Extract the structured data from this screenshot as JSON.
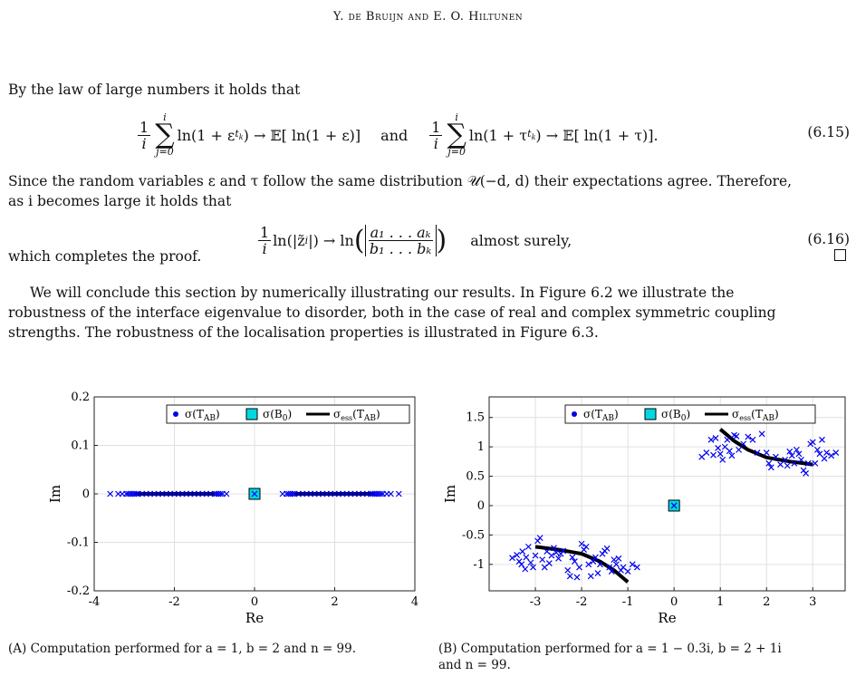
{
  "running_head": "Y. de Bruijn and E. O. Hiltunen",
  "para1": "By the law of large numbers it holds that",
  "eq615": {
    "number": "(6.15)",
    "frac_num": "1",
    "frac_den": "i",
    "sum_top": "i",
    "sum_bottom": "j=0",
    "term_left": "ln(1 + ε",
    "sub_left": "t",
    "subsub": "k",
    "arrow_left": ") → 𝔼[ ln(1 + ε)]",
    "and_word": "and",
    "term_right": "ln(1 + τ",
    "arrow_right": ") → 𝔼[ ln(1 + τ)]."
  },
  "para2_line1": "Since the random variables ε and τ follow the same distribution 𝒰(−d, d) their expectations agree. Therefore,",
  "para2_line2": "as i becomes large it holds that",
  "eq616": {
    "number": "(6.16)",
    "lhs": "ln(|z̃",
    "lhs_sub": "i",
    "lhs_end": "|) → ln",
    "num": "a₁ . . . aₖ",
    "den": "b₁ . . . bₖ",
    "text": "almost surely,"
  },
  "para3": "which completes the proof.",
  "para4_line1": "We will conclude this section by numerically illustrating our results. In Figure 6.2 we illustrate the",
  "para4_line2": "robustness of the interface eigenvalue to disorder, both in the case of real and complex symmetric coupling",
  "para4_line3": "strengths. The robustness of the localisation properties is illustrated in Figure 6.3.",
  "caption_a": "(A) Computation performed for a = 1,  b = 2 and n = 99.",
  "caption_b_line1": "(B) Computation performed for a = 1 − 0.3i,  b = 2 + 1i",
  "caption_b_line2": "and n = 99.",
  "legend": {
    "spectrum": "σ(T",
    "spectrum_sub": "AB",
    "defect": "σ(B",
    "defect_sub": "0",
    "essential": "σ",
    "essential_sub": "ess",
    "essential_arg": "(T",
    "close": ")"
  },
  "colors": {
    "spectrum": "#0000ee",
    "defect_fill": "#00d8e0",
    "essential": "#000000",
    "grid": "#e0e0e0"
  },
  "chart_data": [
    {
      "type": "scatter",
      "title": "",
      "xlabel": "Re",
      "ylabel": "Im",
      "xlim": [
        -4,
        4
      ],
      "ylim": [
        -0.2,
        0.2
      ],
      "x_ticks": [
        "-4",
        "-2",
        "0",
        "2",
        "4"
      ],
      "y_ticks": [
        "0.2",
        "0.1",
        "0",
        "-0.1",
        "-0.2"
      ],
      "x_tick_values": [
        -4,
        -2,
        0,
        2,
        4
      ],
      "y_tick_values": [
        0.2,
        0.1,
        0,
        -0.1,
        -0.2
      ],
      "grid": true,
      "legend_position": "top-right",
      "series": [
        {
          "name": "σ(T_AB)",
          "marker": "x",
          "points": [
            [
              -3.6,
              0
            ],
            [
              -3.4,
              0
            ],
            [
              -3.3,
              0
            ],
            [
              -3.2,
              0
            ],
            [
              -3.15,
              0
            ],
            [
              -3.1,
              0
            ],
            [
              -3.05,
              0
            ],
            [
              -3.0,
              0
            ],
            [
              -2.95,
              0
            ],
            [
              -2.9,
              0
            ],
            [
              -2.8,
              0
            ],
            [
              -2.7,
              0
            ],
            [
              -2.6,
              0
            ],
            [
              -2.5,
              0
            ],
            [
              -2.4,
              0
            ],
            [
              -2.3,
              0
            ],
            [
              -2.2,
              0
            ],
            [
              -2.1,
              0
            ],
            [
              -2.0,
              0
            ],
            [
              -1.9,
              0
            ],
            [
              -1.8,
              0
            ],
            [
              -1.7,
              0
            ],
            [
              -1.6,
              0
            ],
            [
              -1.5,
              0
            ],
            [
              -1.4,
              0
            ],
            [
              -1.3,
              0
            ],
            [
              -1.2,
              0
            ],
            [
              -1.1,
              0
            ],
            [
              -1.0,
              0
            ],
            [
              -0.95,
              0
            ],
            [
              -0.9,
              0
            ],
            [
              -0.85,
              0
            ],
            [
              -0.8,
              0
            ],
            [
              -0.7,
              0
            ],
            [
              0.7,
              0
            ],
            [
              0.8,
              0
            ],
            [
              0.85,
              0
            ],
            [
              0.9,
              0
            ],
            [
              0.95,
              0
            ],
            [
              1.0,
              0
            ],
            [
              1.1,
              0
            ],
            [
              1.2,
              0
            ],
            [
              1.3,
              0
            ],
            [
              1.4,
              0
            ],
            [
              1.5,
              0
            ],
            [
              1.6,
              0
            ],
            [
              1.7,
              0
            ],
            [
              1.8,
              0
            ],
            [
              1.9,
              0
            ],
            [
              2.0,
              0
            ],
            [
              2.1,
              0
            ],
            [
              2.2,
              0
            ],
            [
              2.3,
              0
            ],
            [
              2.4,
              0
            ],
            [
              2.5,
              0
            ],
            [
              2.6,
              0
            ],
            [
              2.7,
              0
            ],
            [
              2.8,
              0
            ],
            [
              2.9,
              0
            ],
            [
              2.95,
              0
            ],
            [
              3.0,
              0
            ],
            [
              3.05,
              0
            ],
            [
              3.1,
              0
            ],
            [
              3.15,
              0
            ],
            [
              3.2,
              0
            ],
            [
              3.3,
              0
            ],
            [
              3.4,
              0
            ],
            [
              3.6,
              0
            ],
            [
              0,
              0
            ]
          ]
        },
        {
          "name": "σ(B_0)",
          "marker": "square",
          "points": [
            [
              0,
              0
            ]
          ]
        },
        {
          "name": "σ_ess(T_AB)",
          "marker": "line",
          "segments": [
            [
              [
                -3,
                0
              ],
              [
                -1,
                0
              ]
            ],
            [
              [
                1,
                0
              ],
              [
                3,
                0
              ]
            ]
          ]
        }
      ]
    },
    {
      "type": "scatter",
      "title": "",
      "xlabel": "Re",
      "ylabel": "Im",
      "xlim": [
        -4,
        3.7
      ],
      "ylim": [
        -1.45,
        1.85
      ],
      "x_ticks": [
        "-3",
        "-2",
        "-1",
        "0",
        "1",
        "2",
        "3"
      ],
      "y_ticks": [
        "1.5",
        "1",
        "0.5",
        "0",
        "-0.5",
        "-1"
      ],
      "x_tick_values": [
        -3,
        -2,
        -1,
        0,
        1,
        2,
        3
      ],
      "y_tick_values": [
        1.5,
        1,
        0.5,
        0,
        -0.5,
        -1
      ],
      "grid": true,
      "legend_position": "top-right",
      "series": [
        {
          "name": "σ(T_AB)",
          "marker": "x",
          "points": [
            [
              -3.5,
              -0.89
            ],
            [
              -3.4,
              -0.84
            ],
            [
              -3.35,
              -0.95
            ],
            [
              -3.3,
              -1.0
            ],
            [
              -3.28,
              -0.78
            ],
            [
              -3.22,
              -1.08
            ],
            [
              -3.2,
              -0.88
            ],
            [
              -3.15,
              -0.7
            ],
            [
              -3.1,
              -0.97
            ],
            [
              -3.05,
              -1.05
            ],
            [
              -3.0,
              -0.85
            ],
            [
              -2.95,
              -0.6
            ],
            [
              -2.9,
              -0.55
            ],
            [
              -2.85,
              -0.92
            ],
            [
              -2.8,
              -1.05
            ],
            [
              -2.75,
              -0.78
            ],
            [
              -2.7,
              -0.98
            ],
            [
              -2.65,
              -0.85
            ],
            [
              -2.6,
              -0.72
            ],
            [
              -2.55,
              -0.8
            ],
            [
              -2.5,
              -0.9
            ],
            [
              -2.45,
              -0.82
            ],
            [
              -2.4,
              -0.77
            ],
            [
              -2.3,
              -1.1
            ],
            [
              -2.25,
              -1.2
            ],
            [
              -2.2,
              -0.88
            ],
            [
              -2.15,
              -0.95
            ],
            [
              -2.1,
              -1.22
            ],
            [
              -2.05,
              -1.05
            ],
            [
              -2.0,
              -0.65
            ],
            [
              -1.95,
              -0.75
            ],
            [
              -1.9,
              -0.7
            ],
            [
              -1.85,
              -1.0
            ],
            [
              -1.8,
              -1.2
            ],
            [
              -1.75,
              -0.95
            ],
            [
              -1.7,
              -0.88
            ],
            [
              -1.65,
              -1.15
            ],
            [
              -1.6,
              -1.0
            ],
            [
              -1.55,
              -0.82
            ],
            [
              -1.5,
              -0.77
            ],
            [
              -1.45,
              -0.73
            ],
            [
              -1.4,
              -1.05
            ],
            [
              -1.35,
              -1.12
            ],
            [
              -1.3,
              -0.92
            ],
            [
              -1.25,
              -1.0
            ],
            [
              -1.2,
              -0.9
            ],
            [
              -1.15,
              -1.1
            ],
            [
              -1.1,
              -1.05
            ],
            [
              -1.0,
              -1.12
            ],
            [
              -0.9,
              -1.0
            ],
            [
              -0.8,
              -1.05
            ],
            [
              0.6,
              0.83
            ],
            [
              0.7,
              0.9
            ],
            [
              0.8,
              1.12
            ],
            [
              0.85,
              0.86
            ],
            [
              0.9,
              1.15
            ],
            [
              0.95,
              0.98
            ],
            [
              1.0,
              0.88
            ],
            [
              1.05,
              0.78
            ],
            [
              1.1,
              1.0
            ],
            [
              1.15,
              1.12
            ],
            [
              1.2,
              0.93
            ],
            [
              1.25,
              0.85
            ],
            [
              1.3,
              1.2
            ],
            [
              1.35,
              1.18
            ],
            [
              1.4,
              0.95
            ],
            [
              1.5,
              1.05
            ],
            [
              1.6,
              1.17
            ],
            [
              1.7,
              1.12
            ],
            [
              1.8,
              0.9
            ],
            [
              1.9,
              1.22
            ],
            [
              2.0,
              0.9
            ],
            [
              2.05,
              0.72
            ],
            [
              2.1,
              0.65
            ],
            [
              2.2,
              0.83
            ],
            [
              2.3,
              0.7
            ],
            [
              2.4,
              0.78
            ],
            [
              2.45,
              0.68
            ],
            [
              2.5,
              0.92
            ],
            [
              2.55,
              0.85
            ],
            [
              2.6,
              0.72
            ],
            [
              2.65,
              0.95
            ],
            [
              2.7,
              0.88
            ],
            [
              2.75,
              0.78
            ],
            [
              2.8,
              0.6
            ],
            [
              2.85,
              0.55
            ],
            [
              2.9,
              0.72
            ],
            [
              2.95,
              1.05
            ],
            [
              3.0,
              1.08
            ],
            [
              3.05,
              0.72
            ],
            [
              3.1,
              0.95
            ],
            [
              3.15,
              0.88
            ],
            [
              3.2,
              1.12
            ],
            [
              3.25,
              0.8
            ],
            [
              3.3,
              0.9
            ],
            [
              3.4,
              0.85
            ],
            [
              3.5,
              0.9
            ],
            [
              0,
              0
            ]
          ]
        },
        {
          "name": "σ(B_0)",
          "marker": "square",
          "points": [
            [
              0,
              0
            ]
          ]
        },
        {
          "name": "σ_ess(T_AB)",
          "marker": "line",
          "curves": [
            [
              [
                -3,
                -0.7
              ],
              [
                -2.5,
                -0.75
              ],
              [
                -2,
                -0.82
              ],
              [
                -1.6,
                -0.95
              ],
              [
                -1.3,
                -1.1
              ],
              [
                -1,
                -1.3
              ]
            ],
            [
              [
                1,
                1.3
              ],
              [
                1.3,
                1.1
              ],
              [
                1.6,
                0.95
              ],
              [
                2,
                0.82
              ],
              [
                2.5,
                0.75
              ],
              [
                3,
                0.7
              ]
            ]
          ]
        }
      ]
    }
  ]
}
